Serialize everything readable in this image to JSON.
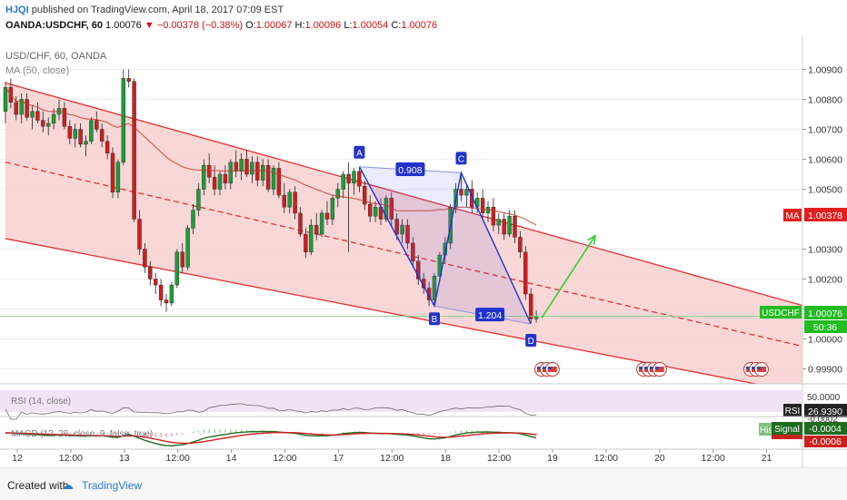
{
  "header": {
    "author": "HJQI",
    "published": "published on TradingView.com, April 18, 2017 07:09 EST",
    "symbol": "OANDA:USDCHF, 60",
    "last": "1.00076",
    "change": "−0.00378 (−0.38%)",
    "o_label": "O:",
    "o_value": "1.00067",
    "h_label": "H:",
    "h_value": "1.00096",
    "l_label": "L:",
    "l_value": "1.00054",
    "c_label": "C:",
    "c_value": "1.00076"
  },
  "legend": {
    "instrument": "USD/CHF, 60, OANDA",
    "ma": "MA (50, close)",
    "rsi": "RSI (14, close)",
    "macd": "MACD (12, 26, close, 9, false, true)"
  },
  "price_axis": {
    "labels": [
      "1.00900",
      "1.00800",
      "1.00700",
      "1.00600",
      "1.00500",
      "1.00300",
      "1.00200",
      "1.00100",
      "1.00000",
      "0.99900"
    ],
    "ma_badge": {
      "label": "MA",
      "value": "1.00378"
    },
    "last_badge": {
      "label": "USDCHF",
      "value": "1.00076",
      "countdown": "50:36"
    }
  },
  "rsi_axis": {
    "level": "50.0000",
    "badge_label": "RSI",
    "badge_value": "26.9390"
  },
  "macd_axis": {
    "hist_label": "His",
    "signal_label": "Signal",
    "signal_value": "-0.0004",
    "macd_value": "-0.0006",
    "top_value": "-0.0002"
  },
  "time_axis": {
    "labels": [
      "12",
      "12:00",
      "13",
      "12:00",
      "14",
      "12:00",
      "17",
      "12:00",
      "18",
      "12:00",
      "19",
      "12:00",
      "20",
      "12:00",
      "21"
    ]
  },
  "pattern": {
    "points": [
      "A",
      "B",
      "C",
      "D"
    ],
    "ratios": {
      "ac": "0.908",
      "bd": "1.204"
    }
  },
  "footer": {
    "created": "Created with",
    "brand": "TradingView"
  },
  "colors": {
    "up": "#1f9c3a",
    "down": "#cc1f1f",
    "channel_fill": "#f6cdcc",
    "channel_line": "#e03030",
    "pattern": "#2233cc",
    "arrow": "#33cc33",
    "ma": "#c0392b"
  },
  "chart_data": {
    "type": "candlestick",
    "time_axis_dates": [
      "12",
      "13",
      "14",
      "17",
      "18",
      "19",
      "20",
      "21"
    ],
    "ylim": [
      0.9985,
      1.0095
    ],
    "ma_period": 50,
    "channel": {
      "upper": {
        "x": [
          0,
          150
        ],
        "y": [
          1.00855,
          1.00105
        ]
      },
      "lower": {
        "x": [
          0,
          150
        ],
        "y": [
          1.00335,
          0.99815
        ]
      },
      "mid": {
        "x": [
          0,
          150
        ],
        "y": [
          1.0059,
          0.9997
        ]
      }
    },
    "harmonic": {
      "A": {
        "i": 66,
        "price": 1.00575
      },
      "B": {
        "i": 80,
        "price": 1.0011
      },
      "C": {
        "i": 85,
        "price": 1.00555
      },
      "D": {
        "i": 98,
        "price": 1.0005
      }
    },
    "projection": {
      "from": {
        "i": 100,
        "price": 1.0007
      },
      "to": {
        "i": 110,
        "price": 1.00345
      }
    },
    "last_price": 1.00076,
    "ma_value": 1.00378,
    "rsi_last": 26.939,
    "macd_signal": -0.0004,
    "candles": [
      [
        1.0076,
        1.0086,
        1.0072,
        1.0084
      ],
      [
        1.0084,
        1.0087,
        1.0077,
        1.0079
      ],
      [
        1.0079,
        1.0081,
        1.0073,
        1.0075
      ],
      [
        1.0075,
        1.0082,
        1.0072,
        1.008
      ],
      [
        1.008,
        1.0082,
        1.0073,
        1.0074
      ],
      [
        1.0074,
        1.0078,
        1.007,
        1.0076
      ],
      [
        1.0076,
        1.0079,
        1.0072,
        1.0073
      ],
      [
        1.0073,
        1.0076,
        1.0069,
        1.0071
      ],
      [
        1.0071,
        1.0074,
        1.0068,
        1.0072
      ],
      [
        1.0072,
        1.0077,
        1.007,
        1.0075
      ],
      [
        1.0075,
        1.008,
        1.0073,
        1.0077
      ],
      [
        1.0077,
        1.0079,
        1.007,
        1.0071
      ],
      [
        1.0071,
        1.0073,
        1.0065,
        1.0067
      ],
      [
        1.0067,
        1.0072,
        1.0064,
        1.007
      ],
      [
        1.007,
        1.0072,
        1.0064,
        1.0065
      ],
      [
        1.0065,
        1.0068,
        1.0061,
        1.0066
      ],
      [
        1.0066,
        1.0074,
        1.0065,
        1.0073
      ],
      [
        1.0073,
        1.0076,
        1.0069,
        1.007
      ],
      [
        1.007,
        1.0072,
        1.0064,
        1.0066
      ],
      [
        1.0066,
        1.0068,
        1.006,
        1.0062
      ],
      [
        1.0062,
        1.0064,
        1.0047,
        1.0049
      ],
      [
        1.0049,
        1.006,
        1.0047,
        1.0059
      ],
      [
        1.0059,
        1.009,
        1.0058,
        1.0087
      ],
      [
        1.0087,
        1.009,
        1.0084,
        1.0086
      ],
      [
        1.0086,
        1.0087,
        1.0039,
        1.004
      ],
      [
        1.004,
        1.0043,
        1.0028,
        1.003
      ],
      [
        1.003,
        1.0032,
        1.0022,
        1.0024
      ],
      [
        1.0024,
        1.0026,
        1.0018,
        1.002
      ],
      [
        1.002,
        1.0022,
        1.0015,
        1.0018
      ],
      [
        1.0018,
        1.002,
        1.0011,
        1.0013
      ],
      [
        1.0013,
        1.0015,
        1.0009,
        1.0012
      ],
      [
        1.0012,
        1.0019,
        1.0011,
        1.0018
      ],
      [
        1.0018,
        1.003,
        1.0017,
        1.0029
      ],
      [
        1.0029,
        1.0032,
        1.0022,
        1.0024
      ],
      [
        1.0024,
        1.0038,
        1.0023,
        1.0037
      ],
      [
        1.0037,
        1.0045,
        1.0035,
        1.0043
      ],
      [
        1.0043,
        1.0052,
        1.0041,
        1.005
      ],
      [
        1.005,
        1.006,
        1.0048,
        1.0058
      ],
      [
        1.0058,
        1.0062,
        1.0052,
        1.0054
      ],
      [
        1.0054,
        1.0058,
        1.0048,
        1.005
      ],
      [
        1.005,
        1.0056,
        1.0048,
        1.0055
      ],
      [
        1.0055,
        1.0058,
        1.005,
        1.0052
      ],
      [
        1.0052,
        1.006,
        1.005,
        1.0059
      ],
      [
        1.0059,
        1.0063,
        1.0054,
        1.0056
      ],
      [
        1.0056,
        1.0062,
        1.0053,
        1.006
      ],
      [
        1.006,
        1.0063,
        1.0054,
        1.0055
      ],
      [
        1.0055,
        1.0061,
        1.0052,
        1.0059
      ],
      [
        1.0059,
        1.0061,
        1.0051,
        1.0053
      ],
      [
        1.0053,
        1.006,
        1.0051,
        1.0058
      ],
      [
        1.0058,
        1.006,
        1.0049,
        1.005
      ],
      [
        1.005,
        1.0058,
        1.0048,
        1.0057
      ],
      [
        1.0057,
        1.0059,
        1.0047,
        1.0048
      ],
      [
        1.0048,
        1.0052,
        1.0042,
        1.0044
      ],
      [
        1.0044,
        1.005,
        1.0042,
        1.0049
      ],
      [
        1.0049,
        1.0051,
        1.004,
        1.0042
      ],
      [
        1.0042,
        1.0044,
        1.0034,
        1.0035
      ],
      [
        1.0035,
        1.0037,
        1.0027,
        1.0029
      ],
      [
        1.0029,
        1.004,
        1.0028,
        1.0038
      ],
      [
        1.0038,
        1.0042,
        1.0033,
        1.0035
      ],
      [
        1.0035,
        1.0043,
        1.0034,
        1.0042
      ],
      [
        1.0042,
        1.0046,
        1.0038,
        1.004
      ],
      [
        1.004,
        1.0048,
        1.0038,
        1.0047
      ],
      [
        1.0047,
        1.0052,
        1.0044,
        1.005
      ],
      [
        1.005,
        1.0056,
        1.0047,
        1.0055
      ],
      [
        1.0055,
        1.0059,
        1.0029,
        1.0052
      ],
      [
        1.0052,
        1.0057,
        1.0048,
        1.0056
      ],
      [
        1.0056,
        1.00575,
        1.0049,
        1.0051
      ],
      [
        1.0051,
        1.0053,
        1.0043,
        1.0045
      ],
      [
        1.0045,
        1.0048,
        1.0039,
        1.0041
      ],
      [
        1.0041,
        1.0046,
        1.0039,
        1.0044
      ],
      [
        1.0044,
        1.0047,
        1.0038,
        1.004
      ],
      [
        1.004,
        1.0048,
        1.0039,
        1.0047
      ],
      [
        1.0047,
        1.0049,
        1.0038,
        1.004
      ],
      [
        1.004,
        1.0042,
        1.0033,
        1.0035
      ],
      [
        1.0035,
        1.004,
        1.0032,
        1.0038
      ],
      [
        1.0038,
        1.004,
        1.003,
        1.0032
      ],
      [
        1.0032,
        1.0034,
        1.0024,
        1.0026
      ],
      [
        1.0026,
        1.0028,
        1.0018,
        1.002
      ],
      [
        1.002,
        1.0022,
        1.0015,
        1.0017
      ],
      [
        1.0017,
        1.0019,
        1.0011,
        1.0013
      ],
      [
        1.0013,
        1.0022,
        1.0011,
        1.0021
      ],
      [
        1.0021,
        1.0029,
        1.0019,
        1.0028
      ],
      [
        1.0028,
        1.0034,
        1.0025,
        1.0032
      ],
      [
        1.0032,
        1.0045,
        1.003,
        1.0044
      ],
      [
        1.0044,
        1.0052,
        1.0042,
        1.005
      ],
      [
        1.005,
        1.00555,
        1.0046,
        1.0048
      ],
      [
        1.0048,
        1.0052,
        1.0044,
        1.005
      ],
      [
        1.005,
        1.0053,
        1.0042,
        1.0044
      ],
      [
        1.0044,
        1.0049,
        1.0042,
        1.0047
      ],
      [
        1.0047,
        1.005,
        1.004,
        1.0042
      ],
      [
        1.0042,
        1.0046,
        1.0039,
        1.0044
      ],
      [
        1.0044,
        1.0047,
        1.0036,
        1.0038
      ],
      [
        1.0038,
        1.0042,
        1.0035,
        1.004
      ],
      [
        1.004,
        1.0042,
        1.0033,
        1.0035
      ],
      [
        1.0035,
        1.0043,
        1.0034,
        1.0041
      ],
      [
        1.0041,
        1.0043,
        1.0032,
        1.0034
      ],
      [
        1.0034,
        1.0036,
        1.0027,
        1.0029
      ],
      [
        1.0029,
        1.0031,
        1.0013,
        1.0015
      ],
      [
        1.0015,
        1.0017,
        1.0005,
        1.00067
      ],
      [
        1.00067,
        1.00096,
        1.00054,
        1.00076
      ]
    ]
  }
}
